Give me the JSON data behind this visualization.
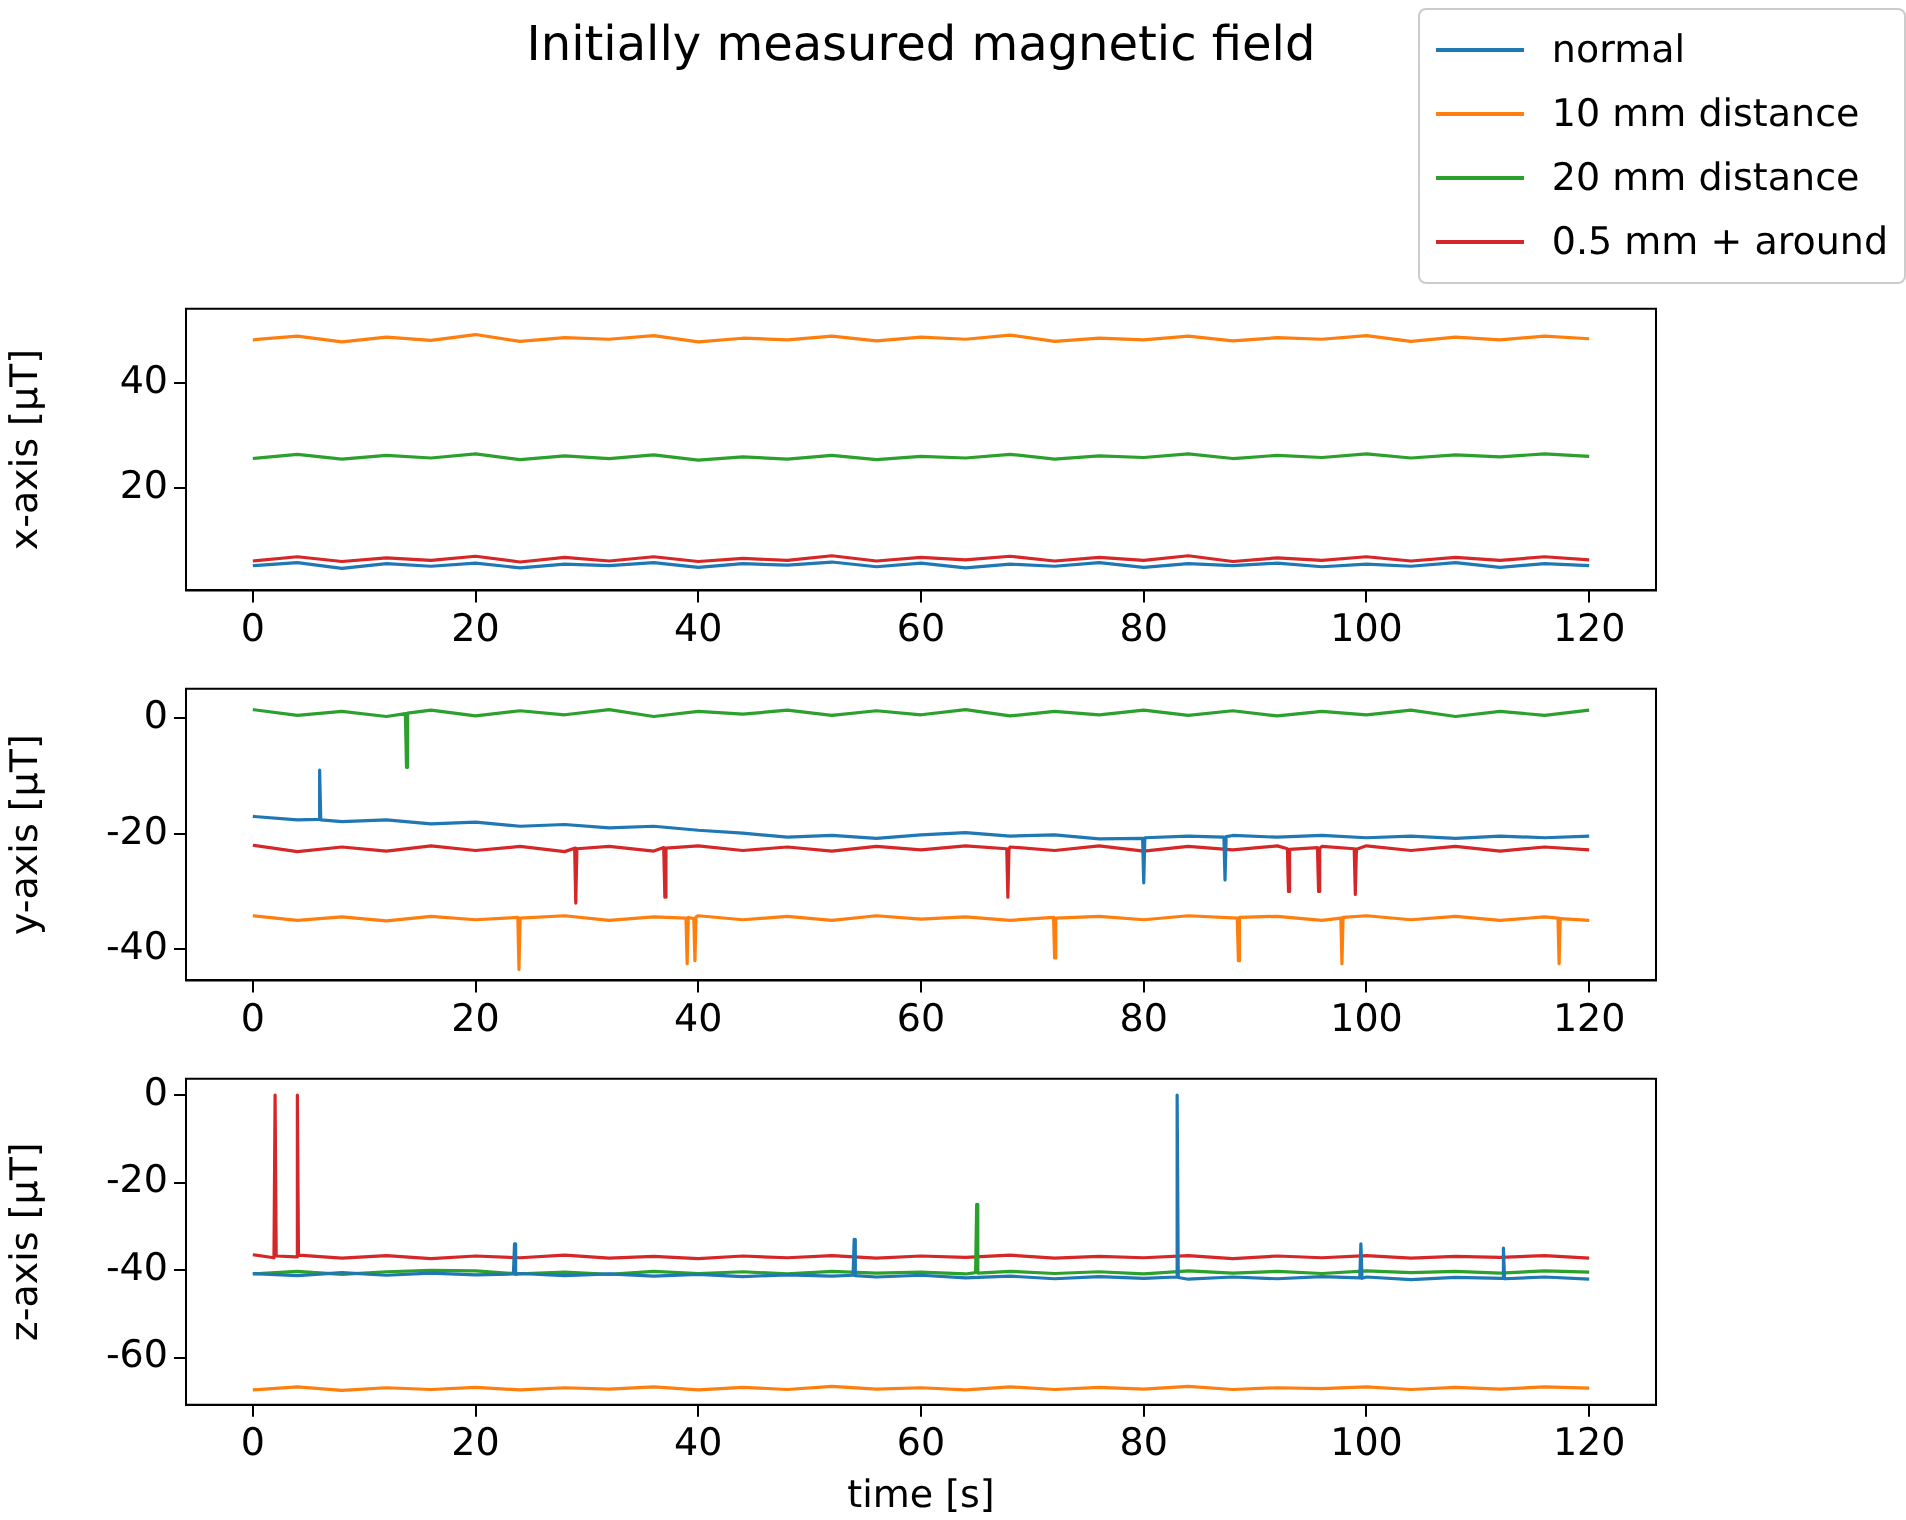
{
  "chart_data": [
    {
      "type": "line",
      "title": "Initially measured magnetic field",
      "ylabel": "x-axis [μT]",
      "legend": "top right",
      "grid": false,
      "marker": "none",
      "line_style": "solid",
      "xlim": [
        -6,
        126
      ],
      "xticks": [
        0,
        20,
        40,
        60,
        80,
        100,
        120
      ],
      "ylim": [
        0.6,
        54.2
      ],
      "yticks": [
        20,
        40
      ],
      "series": [
        {
          "name": "normal",
          "color": "#1f77b4",
          "x": [
            0,
            4,
            8,
            12,
            16,
            20,
            24,
            28,
            32,
            36,
            40,
            44,
            48,
            52,
            56,
            60,
            64,
            68,
            72,
            76,
            80,
            84,
            88,
            92,
            96,
            100,
            104,
            108,
            112,
            116,
            120
          ],
          "values": [
            5.3,
            5.9,
            4.8,
            5.7,
            5.2,
            5.8,
            4.9,
            5.6,
            5.3,
            5.9,
            5.0,
            5.7,
            5.4,
            6.0,
            5.1,
            5.8,
            4.9,
            5.6,
            5.2,
            5.9,
            5.0,
            5.7,
            5.3,
            5.8,
            5.1,
            5.6,
            5.2,
            5.9,
            5.0,
            5.7,
            5.3
          ]
        },
        {
          "name": "10 mm distance",
          "color": "#ff7f0e",
          "x": [
            0,
            4,
            8,
            12,
            16,
            20,
            24,
            28,
            32,
            36,
            40,
            44,
            48,
            52,
            56,
            60,
            64,
            68,
            72,
            76,
            80,
            84,
            88,
            92,
            96,
            100,
            104,
            108,
            112,
            116,
            120
          ],
          "values": [
            48.3,
            49.0,
            47.9,
            48.8,
            48.2,
            49.3,
            48.0,
            48.7,
            48.4,
            49.1,
            47.9,
            48.6,
            48.3,
            49.0,
            48.1,
            48.8,
            48.4,
            49.2,
            48.0,
            48.6,
            48.3,
            49.0,
            48.1,
            48.7,
            48.4,
            49.1,
            48.0,
            48.8,
            48.3,
            49.0,
            48.5
          ]
        },
        {
          "name": "20 mm distance",
          "color": "#2ca02c",
          "x": [
            0,
            4,
            8,
            12,
            16,
            20,
            24,
            28,
            32,
            36,
            40,
            44,
            48,
            52,
            56,
            60,
            64,
            68,
            72,
            76,
            80,
            84,
            88,
            92,
            96,
            100,
            104,
            108,
            112,
            116,
            120
          ],
          "values": [
            25.7,
            26.5,
            25.6,
            26.3,
            25.8,
            26.6,
            25.5,
            26.2,
            25.7,
            26.4,
            25.4,
            26.0,
            25.6,
            26.3,
            25.5,
            26.1,
            25.8,
            26.5,
            25.6,
            26.2,
            25.9,
            26.6,
            25.7,
            26.3,
            25.9,
            26.6,
            25.8,
            26.4,
            26.0,
            26.6,
            26.1
          ]
        },
        {
          "name": "0.5 mm + around",
          "color": "#d62728",
          "x": [
            0,
            4,
            8,
            12,
            16,
            20,
            24,
            28,
            32,
            36,
            40,
            44,
            48,
            52,
            56,
            60,
            64,
            68,
            72,
            76,
            80,
            84,
            88,
            92,
            96,
            100,
            104,
            108,
            112,
            116,
            120
          ],
          "values": [
            6.2,
            7.0,
            6.1,
            6.8,
            6.3,
            7.1,
            6.0,
            6.9,
            6.2,
            7.0,
            6.1,
            6.7,
            6.3,
            7.2,
            6.2,
            6.9,
            6.4,
            7.1,
            6.2,
            6.9,
            6.3,
            7.2,
            6.1,
            6.8,
            6.3,
            7.0,
            6.2,
            6.9,
            6.3,
            7.0,
            6.4
          ]
        }
      ]
    },
    {
      "type": "line",
      "ylabel": "y-axis [μT]",
      "grid": false,
      "marker": "none",
      "line_style": "solid",
      "xlim": [
        -6,
        126
      ],
      "xticks": [
        0,
        20,
        40,
        60,
        80,
        100,
        120
      ],
      "ylim": [
        -45.4,
        5.1
      ],
      "yticks": [
        -40,
        -20,
        0
      ],
      "series": [
        {
          "color": "#1f77b4",
          "x": [
            0,
            4,
            5.9,
            6,
            6.1,
            8,
            12,
            16,
            20,
            24,
            28,
            32,
            36,
            40,
            44,
            48,
            52,
            56,
            60,
            64,
            68,
            72,
            76,
            79.9,
            80,
            80.1,
            84,
            87.2,
            87.3,
            87.4,
            88,
            92,
            96,
            100,
            104,
            108,
            112,
            116,
            120
          ],
          "values": [
            -17.0,
            -17.6,
            -17.5,
            -9,
            -17.6,
            -17.9,
            -17.6,
            -18.3,
            -18.0,
            -18.7,
            -18.4,
            -19.0,
            -18.7,
            -19.4,
            -19.9,
            -20.6,
            -20.3,
            -20.8,
            -20.2,
            -19.8,
            -20.4,
            -20.2,
            -20.9,
            -20.8,
            -28.5,
            -20.7,
            -20.4,
            -20.6,
            -28,
            -20.5,
            -20.3,
            -20.6,
            -20.3,
            -20.7,
            -20.4,
            -20.8,
            -20.4,
            -20.7,
            -20.4
          ]
        },
        {
          "color": "#ff7f0e",
          "x": [
            0,
            4,
            8,
            12,
            16,
            20,
            23.8,
            23.9,
            24,
            28,
            32,
            36,
            38.9,
            39,
            39.1,
            39.6,
            39.7,
            39.8,
            40,
            44,
            48,
            52,
            56,
            60,
            64,
            68,
            71.9,
            72,
            72.1,
            76,
            80,
            84,
            88.4,
            88.5,
            88.6,
            92,
            96,
            97.7,
            97.8,
            97.9,
            100,
            104,
            108,
            112,
            116,
            117.2,
            117.3,
            117.4,
            120
          ],
          "values": [
            -34.2,
            -35.0,
            -34.4,
            -35.1,
            -34.3,
            -34.9,
            -34.5,
            -43.5,
            -34.6,
            -34.2,
            -35.0,
            -34.4,
            -34.6,
            -42.5,
            -34.5,
            -34.7,
            -42,
            -34.4,
            -34.2,
            -34.9,
            -34.3,
            -35.0,
            -34.2,
            -34.8,
            -34.4,
            -35.0,
            -34.5,
            -41.5,
            -34.6,
            -34.3,
            -34.9,
            -34.2,
            -34.6,
            -42,
            -34.5,
            -34.3,
            -35.0,
            -34.6,
            -42.5,
            -34.5,
            -34.2,
            -34.9,
            -34.3,
            -35.0,
            -34.4,
            -34.6,
            -42.5,
            -34.7,
            -35.0
          ]
        },
        {
          "color": "#2ca02c",
          "x": [
            0,
            4,
            8,
            12,
            13.7,
            13.8,
            13.9,
            16,
            20,
            24,
            28,
            32,
            36,
            40,
            44,
            48,
            52,
            56,
            60,
            64,
            68,
            72,
            76,
            80,
            84,
            88,
            92,
            96,
            100,
            104,
            108,
            112,
            116,
            120
          ],
          "values": [
            1.5,
            0.5,
            1.2,
            0.3,
            0.8,
            -8.5,
            0.9,
            1.4,
            0.4,
            1.3,
            0.6,
            1.5,
            0.3,
            1.2,
            0.7,
            1.4,
            0.5,
            1.3,
            0.6,
            1.5,
            0.4,
            1.2,
            0.6,
            1.4,
            0.5,
            1.3,
            0.4,
            1.2,
            0.6,
            1.4,
            0.3,
            1.2,
            0.5,
            1.4
          ]
        },
        {
          "color": "#d62728",
          "x": [
            0,
            4,
            8,
            12,
            16,
            20,
            24,
            28,
            28.9,
            29,
            29.1,
            32,
            36,
            36.9,
            37,
            37.1,
            40,
            44,
            48,
            52,
            56,
            60,
            64,
            67.7,
            67.8,
            67.9,
            68,
            72,
            76,
            80,
            84,
            88,
            92,
            92.9,
            93,
            93.1,
            95.6,
            95.7,
            95.8,
            96,
            98.9,
            99,
            99.1,
            100,
            104,
            108,
            112,
            116,
            120
          ],
          "values": [
            -22.0,
            -23.1,
            -22.3,
            -23.0,
            -22.1,
            -22.9,
            -22.2,
            -23.1,
            -22.5,
            -32,
            -22.6,
            -22.2,
            -23.0,
            -22.4,
            -31,
            -22.5,
            -22.1,
            -22.9,
            -22.3,
            -23.0,
            -22.2,
            -22.8,
            -22.1,
            -22.6,
            -31,
            -22.7,
            -22.3,
            -22.9,
            -22.1,
            -23.0,
            -22.2,
            -22.8,
            -22.1,
            -22.6,
            -30,
            -22.7,
            -22.4,
            -30,
            -22.5,
            -22.2,
            -22.6,
            -30.5,
            -22.7,
            -22.1,
            -22.9,
            -22.2,
            -23.0,
            -22.3,
            -22.8
          ]
        }
      ]
    },
    {
      "type": "line",
      "xlabel": "time [s]",
      "ylabel": "z-axis [μT]",
      "grid": false,
      "marker": "none",
      "line_style": "solid",
      "xlim": [
        -6,
        126
      ],
      "xticks": [
        0,
        20,
        40,
        60,
        80,
        100,
        120
      ],
      "ylim": [
        -70.8,
        3.7
      ],
      "yticks": [
        -60,
        -40,
        -20,
        0
      ],
      "series": [
        {
          "color": "#1f77b4",
          "x": [
            0,
            4,
            8,
            12,
            16,
            20,
            23.4,
            23.5,
            23.6,
            24,
            28,
            32,
            36,
            40,
            44,
            48,
            52,
            53.9,
            54,
            54.1,
            56,
            60,
            64,
            68,
            72,
            76,
            80,
            82.9,
            83,
            83.1,
            84,
            88,
            92,
            96,
            99.4,
            99.5,
            99.6,
            100,
            104,
            108,
            112.2,
            112.3,
            112.4,
            116,
            120
          ],
          "values": [
            -40.8,
            -41.3,
            -40.6,
            -41.2,
            -40.7,
            -41.1,
            -40.9,
            -34,
            -41.0,
            -40.8,
            -41.3,
            -40.9,
            -41.4,
            -41.0,
            -41.5,
            -41.1,
            -41.4,
            -41.2,
            -33,
            -41.3,
            -41.6,
            -41.2,
            -41.8,
            -41.4,
            -42.0,
            -41.5,
            -41.9,
            -41.6,
            0,
            -41.7,
            -42.1,
            -41.6,
            -42.0,
            -41.5,
            -41.8,
            -34,
            -41.9,
            -41.6,
            -42.2,
            -41.7,
            -41.9,
            -35,
            -42.0,
            -41.6,
            -42.1
          ]
        },
        {
          "color": "#ff7f0e",
          "x": [
            0,
            4,
            8,
            12,
            16,
            20,
            24,
            28,
            32,
            36,
            40,
            44,
            48,
            52,
            56,
            60,
            64,
            68,
            72,
            76,
            80,
            84,
            88,
            92,
            96,
            100,
            104,
            108,
            112,
            116,
            120
          ],
          "values": [
            -67.4,
            -66.7,
            -67.5,
            -66.9,
            -67.3,
            -66.8,
            -67.4,
            -66.9,
            -67.2,
            -66.7,
            -67.4,
            -66.8,
            -67.3,
            -66.6,
            -67.2,
            -66.9,
            -67.4,
            -66.7,
            -67.3,
            -66.8,
            -67.2,
            -66.6,
            -67.3,
            -66.9,
            -67.1,
            -66.7,
            -67.3,
            -66.8,
            -67.2,
            -66.7,
            -67.0
          ]
        },
        {
          "color": "#2ca02c",
          "x": [
            0,
            4,
            8,
            12,
            16,
            20,
            24,
            28,
            32,
            36,
            40,
            44,
            48,
            52,
            56,
            60,
            64,
            64.9,
            65,
            65.1,
            68,
            72,
            76,
            80,
            84,
            88,
            92,
            96,
            100,
            104,
            108,
            112,
            116,
            120
          ],
          "values": [
            -40.9,
            -40.3,
            -41.0,
            -40.4,
            -40.1,
            -40.2,
            -40.9,
            -40.5,
            -41.0,
            -40.3,
            -40.8,
            -40.4,
            -40.9,
            -40.3,
            -40.7,
            -40.5,
            -40.9,
            -40.6,
            -25,
            -40.7,
            -40.3,
            -40.8,
            -40.4,
            -40.9,
            -40.2,
            -40.7,
            -40.3,
            -40.8,
            -40.2,
            -40.6,
            -40.3,
            -40.7,
            -40.2,
            -40.5
          ]
        },
        {
          "color": "#d62728",
          "x": [
            0,
            1.9,
            2,
            2.1,
            3.9,
            4,
            4.1,
            8,
            12,
            16,
            20,
            24,
            28,
            32,
            36,
            40,
            44,
            48,
            52,
            56,
            60,
            64,
            68,
            72,
            76,
            80,
            84,
            88,
            92,
            96,
            100,
            104,
            108,
            112,
            116,
            120
          ],
          "values": [
            -36.5,
            -37.2,
            0,
            -36.8,
            -37.0,
            0,
            -36.6,
            -37.3,
            -36.7,
            -37.4,
            -36.8,
            -37.2,
            -36.6,
            -37.3,
            -36.9,
            -37.4,
            -36.8,
            -37.2,
            -36.7,
            -37.3,
            -36.8,
            -37.1,
            -36.6,
            -37.3,
            -36.9,
            -37.2,
            -36.7,
            -37.4,
            -36.8,
            -37.2,
            -36.7,
            -37.3,
            -36.9,
            -37.1,
            -36.7,
            -37.3
          ]
        }
      ]
    }
  ]
}
